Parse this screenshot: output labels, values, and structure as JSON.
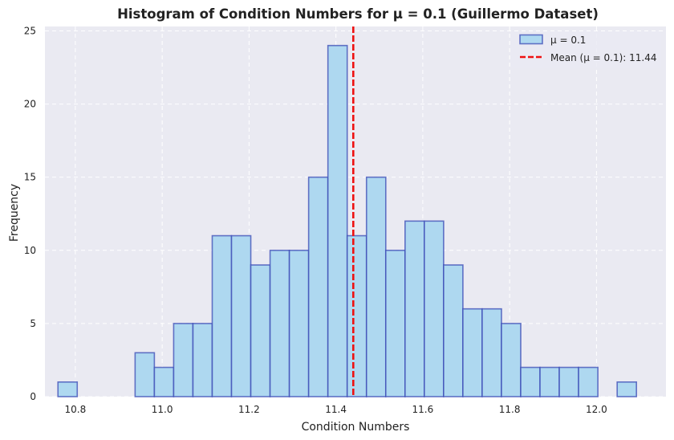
{
  "chart_data": {
    "type": "bar",
    "title": "Histogram of Condition Numbers for μ = 0.1 (Guillermo Dataset)",
    "xlabel": "Condition Numbers",
    "ylabel": "Frequency",
    "xlim": [
      10.73,
      12.16
    ],
    "ylim": [
      0,
      25.3
    ],
    "x_ticks": [
      "10.8",
      "11.0",
      "11.2",
      "11.4",
      "11.6",
      "11.8",
      "12.0"
    ],
    "y_ticks": [
      "0",
      "5",
      "10",
      "15",
      "20",
      "25"
    ],
    "grid": true,
    "legend_position": "top-right",
    "series": [
      {
        "name": "μ = 0.1",
        "bin_start": 10.76,
        "bin_width": 0.0444,
        "values": [
          1,
          0,
          0,
          0,
          3,
          2,
          5,
          5,
          11,
          11,
          9,
          10,
          10,
          15,
          24,
          11,
          15,
          10,
          12,
          12,
          9,
          6,
          6,
          5,
          2,
          2,
          2,
          2,
          0,
          1
        ],
        "fill_color": "#aed8f0",
        "edge_color": "#3a4ab5"
      }
    ],
    "mean_line": {
      "label": "Mean (μ = 0.1): 11.44",
      "value": 11.44,
      "color": "#ee1111"
    }
  },
  "colors": {
    "plot_background": "#eaeaf2",
    "grid": "#ffffff"
  }
}
